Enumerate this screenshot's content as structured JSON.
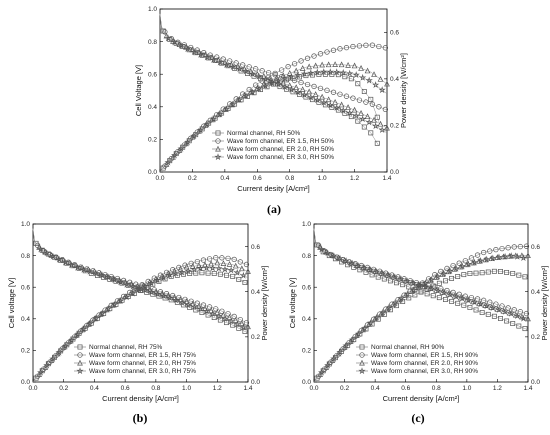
{
  "chart_data": [
    {
      "type": "line",
      "panel_label": "(a)",
      "xlabel": "Current desity [A/cm²]",
      "ylabel": "Cell Voltage [V]",
      "y2label": "Power density [W/cm²]",
      "xlim": [
        0,
        1.4
      ],
      "ylim": [
        0,
        1.0
      ],
      "y2lim": [
        0,
        0.7
      ],
      "xticks": [
        "0.0",
        "0.2",
        "0.4",
        "0.6",
        "0.8",
        "1.0",
        "1.2",
        "1.4"
      ],
      "yticks": [
        "0.0",
        "0.2",
        "0.4",
        "0.6",
        "0.8",
        "1.0"
      ],
      "y2ticks": [
        "0.0",
        "0.2",
        "0.4",
        "0.6"
      ],
      "legend_position": "bottom-left",
      "series": [
        {
          "name": "Normal channel, RH 50%",
          "marker": "square",
          "x": [
            0,
            0.01,
            0.05,
            0.1,
            0.2,
            0.3,
            0.4,
            0.5,
            0.6,
            0.7,
            0.8,
            0.9,
            1.0,
            1.1,
            1.2,
            1.3,
            1.35
          ],
          "voltage": [
            0.97,
            0.88,
            0.82,
            0.79,
            0.74,
            0.7,
            0.66,
            0.62,
            0.58,
            0.54,
            0.5,
            0.46,
            0.42,
            0.38,
            0.33,
            0.24,
            0.16
          ],
          "power": [
            0.0,
            0.009,
            0.041,
            0.079,
            0.148,
            0.21,
            0.264,
            0.31,
            0.348,
            0.378,
            0.4,
            0.414,
            0.42,
            0.418,
            0.396,
            0.312,
            0.216
          ]
        },
        {
          "name": "Wave form channel, ER 1.5, RH 50%",
          "marker": "circle",
          "x": [
            0,
            0.01,
            0.05,
            0.1,
            0.2,
            0.3,
            0.4,
            0.5,
            0.6,
            0.7,
            0.8,
            0.9,
            1.0,
            1.1,
            1.2,
            1.3,
            1.4
          ],
          "voltage": [
            0.97,
            0.89,
            0.83,
            0.8,
            0.76,
            0.72,
            0.69,
            0.66,
            0.63,
            0.6,
            0.57,
            0.54,
            0.51,
            0.48,
            0.45,
            0.42,
            0.38
          ],
          "power": [
            0.0,
            0.009,
            0.042,
            0.08,
            0.152,
            0.216,
            0.276,
            0.33,
            0.378,
            0.42,
            0.456,
            0.486,
            0.51,
            0.528,
            0.54,
            0.546,
            0.532
          ]
        },
        {
          "name": "Wave form channel, ER 2.0, RH 50%",
          "marker": "triangle",
          "x": [
            0,
            0.01,
            0.05,
            0.1,
            0.2,
            0.3,
            0.4,
            0.5,
            0.6,
            0.7,
            0.8,
            0.9,
            1.0,
            1.1,
            1.2,
            1.3,
            1.4
          ],
          "voltage": [
            0.97,
            0.88,
            0.82,
            0.79,
            0.75,
            0.71,
            0.67,
            0.64,
            0.6,
            0.57,
            0.53,
            0.5,
            0.46,
            0.42,
            0.38,
            0.33,
            0.27
          ],
          "power": [
            0.0,
            0.009,
            0.041,
            0.079,
            0.15,
            0.213,
            0.268,
            0.32,
            0.36,
            0.399,
            0.424,
            0.45,
            0.46,
            0.462,
            0.456,
            0.429,
            0.378
          ]
        },
        {
          "name": "Wave form channel, ER 3.0, RH 50%",
          "marker": "star",
          "x": [
            0,
            0.01,
            0.05,
            0.1,
            0.2,
            0.3,
            0.4,
            0.5,
            0.6,
            0.7,
            0.8,
            0.9,
            1.0,
            1.1,
            1.2,
            1.3,
            1.4
          ],
          "voltage": [
            0.97,
            0.88,
            0.82,
            0.79,
            0.74,
            0.7,
            0.66,
            0.63,
            0.59,
            0.55,
            0.51,
            0.47,
            0.43,
            0.39,
            0.35,
            0.3,
            0.24
          ],
          "power": [
            0.0,
            0.009,
            0.041,
            0.079,
            0.148,
            0.21,
            0.264,
            0.315,
            0.354,
            0.385,
            0.408,
            0.423,
            0.43,
            0.429,
            0.42,
            0.39,
            0.336
          ]
        }
      ]
    },
    {
      "type": "line",
      "panel_label": "(b)",
      "xlabel": "Current density [A/cm²]",
      "ylabel": "Cell voltage [V]",
      "y2label": "Power density [W/cm²]",
      "xlim": [
        0,
        1.4
      ],
      "ylim": [
        0,
        1.0
      ],
      "y2lim": [
        0,
        0.7
      ],
      "xticks": [
        "0.0",
        "0.2",
        "0.4",
        "0.6",
        "0.8",
        "1.0",
        "1.2",
        "1.4"
      ],
      "yticks": [
        "0.0",
        "0.2",
        "0.4",
        "0.6",
        "0.8",
        "1.0"
      ],
      "y2ticks": [
        "0.0",
        "0.2",
        "0.4",
        "0.6"
      ],
      "legend_position": "bottom-center",
      "series": [
        {
          "name": "Normal channel, RH 75%",
          "marker": "square",
          "x": [
            0,
            0.01,
            0.05,
            0.1,
            0.2,
            0.3,
            0.4,
            0.5,
            0.6,
            0.7,
            0.8,
            0.9,
            1.0,
            1.1,
            1.2,
            1.3,
            1.4
          ],
          "voltage": [
            0.97,
            0.89,
            0.84,
            0.81,
            0.76,
            0.72,
            0.68,
            0.65,
            0.62,
            0.58,
            0.55,
            0.52,
            0.48,
            0.44,
            0.4,
            0.36,
            0.31
          ],
          "power": [
            0.0,
            0.009,
            0.042,
            0.081,
            0.152,
            0.216,
            0.272,
            0.325,
            0.372,
            0.406,
            0.44,
            0.468,
            0.48,
            0.484,
            0.48,
            0.468,
            0.434
          ]
        },
        {
          "name": "Wave form channel, ER 1.5, RH 75%",
          "marker": "circle",
          "x": [
            0,
            0.01,
            0.05,
            0.1,
            0.2,
            0.3,
            0.4,
            0.5,
            0.6,
            0.7,
            0.8,
            0.9,
            1.0,
            1.1,
            1.2,
            1.3,
            1.4
          ],
          "voltage": [
            0.97,
            0.89,
            0.84,
            0.81,
            0.77,
            0.73,
            0.7,
            0.67,
            0.64,
            0.61,
            0.58,
            0.55,
            0.52,
            0.49,
            0.46,
            0.42,
            0.37
          ],
          "power": [
            0.0,
            0.009,
            0.042,
            0.081,
            0.154,
            0.219,
            0.28,
            0.335,
            0.384,
            0.427,
            0.464,
            0.495,
            0.52,
            0.539,
            0.552,
            0.546,
            0.518
          ]
        },
        {
          "name": "Wave form channel, ER 2.0, RH 75%",
          "marker": "triangle",
          "x": [
            0,
            0.01,
            0.05,
            0.1,
            0.2,
            0.3,
            0.4,
            0.5,
            0.6,
            0.7,
            0.8,
            0.9,
            1.0,
            1.1,
            1.2,
            1.3,
            1.4
          ],
          "voltage": [
            0.97,
            0.89,
            0.84,
            0.81,
            0.77,
            0.73,
            0.7,
            0.66,
            0.63,
            0.6,
            0.57,
            0.54,
            0.51,
            0.47,
            0.44,
            0.4,
            0.35
          ],
          "power": [
            0.0,
            0.009,
            0.042,
            0.081,
            0.154,
            0.219,
            0.28,
            0.33,
            0.378,
            0.42,
            0.456,
            0.486,
            0.51,
            0.517,
            0.528,
            0.52,
            0.49
          ]
        },
        {
          "name": "Wave form channel, ER 3.0, RH 75%",
          "marker": "star",
          "x": [
            0,
            0.01,
            0.05,
            0.1,
            0.2,
            0.3,
            0.4,
            0.5,
            0.6,
            0.7,
            0.8,
            0.9,
            1.0,
            1.1,
            1.2,
            1.3,
            1.4
          ],
          "voltage": [
            0.97,
            0.89,
            0.84,
            0.81,
            0.76,
            0.72,
            0.69,
            0.66,
            0.62,
            0.59,
            0.56,
            0.53,
            0.49,
            0.46,
            0.42,
            0.38,
            0.33
          ],
          "power": [
            0.0,
            0.009,
            0.042,
            0.081,
            0.152,
            0.216,
            0.276,
            0.33,
            0.372,
            0.413,
            0.448,
            0.477,
            0.49,
            0.506,
            0.504,
            0.494,
            0.462
          ]
        }
      ]
    },
    {
      "type": "line",
      "panel_label": "(c)",
      "xlabel": "Current density [A/cm²]",
      "ylabel": "Cell voltage [V]",
      "y2label": "Power density [W/cm²]",
      "xlim": [
        0,
        1.4
      ],
      "ylim": [
        0,
        1.0
      ],
      "y2lim": [
        0,
        0.7
      ],
      "xticks": [
        "0.0",
        "0.2",
        "0.4",
        "0.6",
        "0.8",
        "1.0",
        "1.2",
        "1.4"
      ],
      "yticks": [
        "0.0",
        "0.2",
        "0.4",
        "0.6",
        "0.8",
        "1.0"
      ],
      "y2ticks": [
        "0.0",
        "0.2",
        "0.4",
        "0.6"
      ],
      "legend_position": "bottom-center",
      "series": [
        {
          "name": "Normal channel, RH 90%",
          "marker": "square",
          "x": [
            0,
            0.01,
            0.05,
            0.1,
            0.2,
            0.3,
            0.4,
            0.5,
            0.6,
            0.7,
            0.8,
            0.9,
            1.0,
            1.1,
            1.2,
            1.3,
            1.4
          ],
          "voltage": [
            0.97,
            0.88,
            0.83,
            0.8,
            0.75,
            0.71,
            0.67,
            0.64,
            0.61,
            0.57,
            0.54,
            0.51,
            0.48,
            0.44,
            0.41,
            0.37,
            0.33
          ],
          "power": [
            0.0,
            0.009,
            0.042,
            0.08,
            0.15,
            0.213,
            0.268,
            0.32,
            0.366,
            0.399,
            0.432,
            0.459,
            0.48,
            0.484,
            0.492,
            0.481,
            0.462
          ]
        },
        {
          "name": "Wave form channel, ER 1.5, RH 90%",
          "marker": "circle",
          "x": [
            0,
            0.01,
            0.05,
            0.1,
            0.2,
            0.3,
            0.4,
            0.5,
            0.6,
            0.7,
            0.8,
            0.9,
            1.0,
            1.1,
            1.2,
            1.3,
            1.4
          ],
          "voltage": [
            0.97,
            0.89,
            0.84,
            0.81,
            0.77,
            0.74,
            0.71,
            0.68,
            0.65,
            0.62,
            0.6,
            0.57,
            0.54,
            0.52,
            0.49,
            0.46,
            0.43
          ],
          "power": [
            0.0,
            0.009,
            0.042,
            0.081,
            0.154,
            0.222,
            0.284,
            0.34,
            0.39,
            0.434,
            0.48,
            0.513,
            0.54,
            0.572,
            0.588,
            0.598,
            0.602
          ]
        },
        {
          "name": "Wave form channel, ER 2.0, RH 90%",
          "marker": "triangle",
          "x": [
            0,
            0.01,
            0.05,
            0.1,
            0.2,
            0.3,
            0.4,
            0.5,
            0.6,
            0.7,
            0.8,
            0.9,
            1.0,
            1.1,
            1.2,
            1.3,
            1.4
          ],
          "voltage": [
            0.97,
            0.89,
            0.84,
            0.81,
            0.77,
            0.73,
            0.7,
            0.67,
            0.64,
            0.61,
            0.58,
            0.55,
            0.52,
            0.49,
            0.46,
            0.43,
            0.4
          ],
          "power": [
            0.0,
            0.009,
            0.042,
            0.081,
            0.154,
            0.219,
            0.28,
            0.335,
            0.384,
            0.427,
            0.464,
            0.495,
            0.52,
            0.539,
            0.552,
            0.559,
            0.56
          ]
        },
        {
          "name": "Wave form channel, ER 3.0, RH 90%",
          "marker": "star",
          "x": [
            0,
            0.01,
            0.05,
            0.1,
            0.2,
            0.3,
            0.4,
            0.5,
            0.6,
            0.7,
            0.8,
            0.9,
            1.0,
            1.1,
            1.2,
            1.3,
            1.4
          ],
          "voltage": [
            0.97,
            0.89,
            0.84,
            0.81,
            0.77,
            0.73,
            0.7,
            0.67,
            0.64,
            0.61,
            0.58,
            0.55,
            0.52,
            0.49,
            0.46,
            0.43,
            0.39
          ],
          "power": [
            0.0,
            0.009,
            0.042,
            0.081,
            0.154,
            0.219,
            0.28,
            0.335,
            0.384,
            0.427,
            0.464,
            0.495,
            0.52,
            0.539,
            0.552,
            0.559,
            0.546
          ]
        }
      ]
    }
  ]
}
